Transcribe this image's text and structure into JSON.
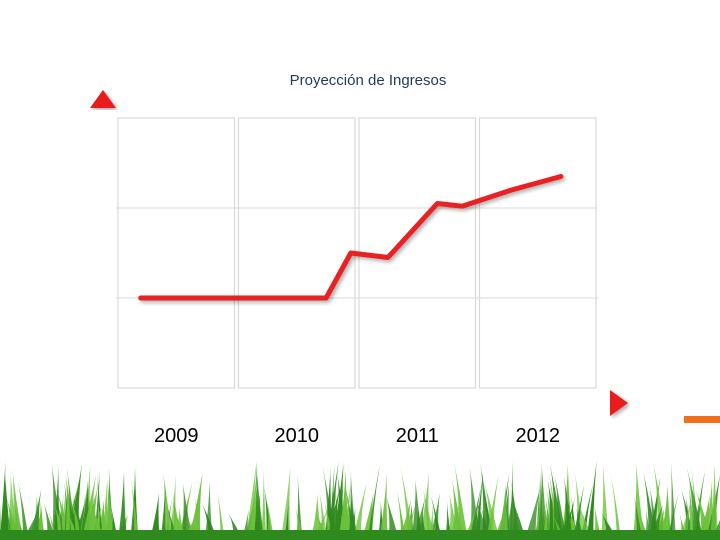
{
  "chart_data": {
    "type": "line",
    "title": "Proyección de Ingresos",
    "categories": [
      "2009",
      "2010",
      "2011",
      "2012"
    ],
    "x": [
      2009,
      2009.5,
      2010,
      2010.5,
      2010.7,
      2011,
      2011.4,
      2011.6,
      2012,
      2012.4
    ],
    "series": [
      {
        "values": [
          1.0,
          1.0,
          1.0,
          1.0,
          1.5,
          1.45,
          2.05,
          2.02,
          2.2,
          2.35
        ]
      }
    ],
    "xlabel": "",
    "ylabel": "",
    "ylim": [
      0,
      3
    ],
    "grid": true,
    "legend": "none",
    "colors": {
      "line": "#e82020",
      "axis": "#e81a1a",
      "grid": "#d9d9d9",
      "title": "#1f3a5c",
      "accent": "#f07020",
      "grass_dark": "#2f8a1e",
      "grass_light": "#6cc13a"
    }
  }
}
